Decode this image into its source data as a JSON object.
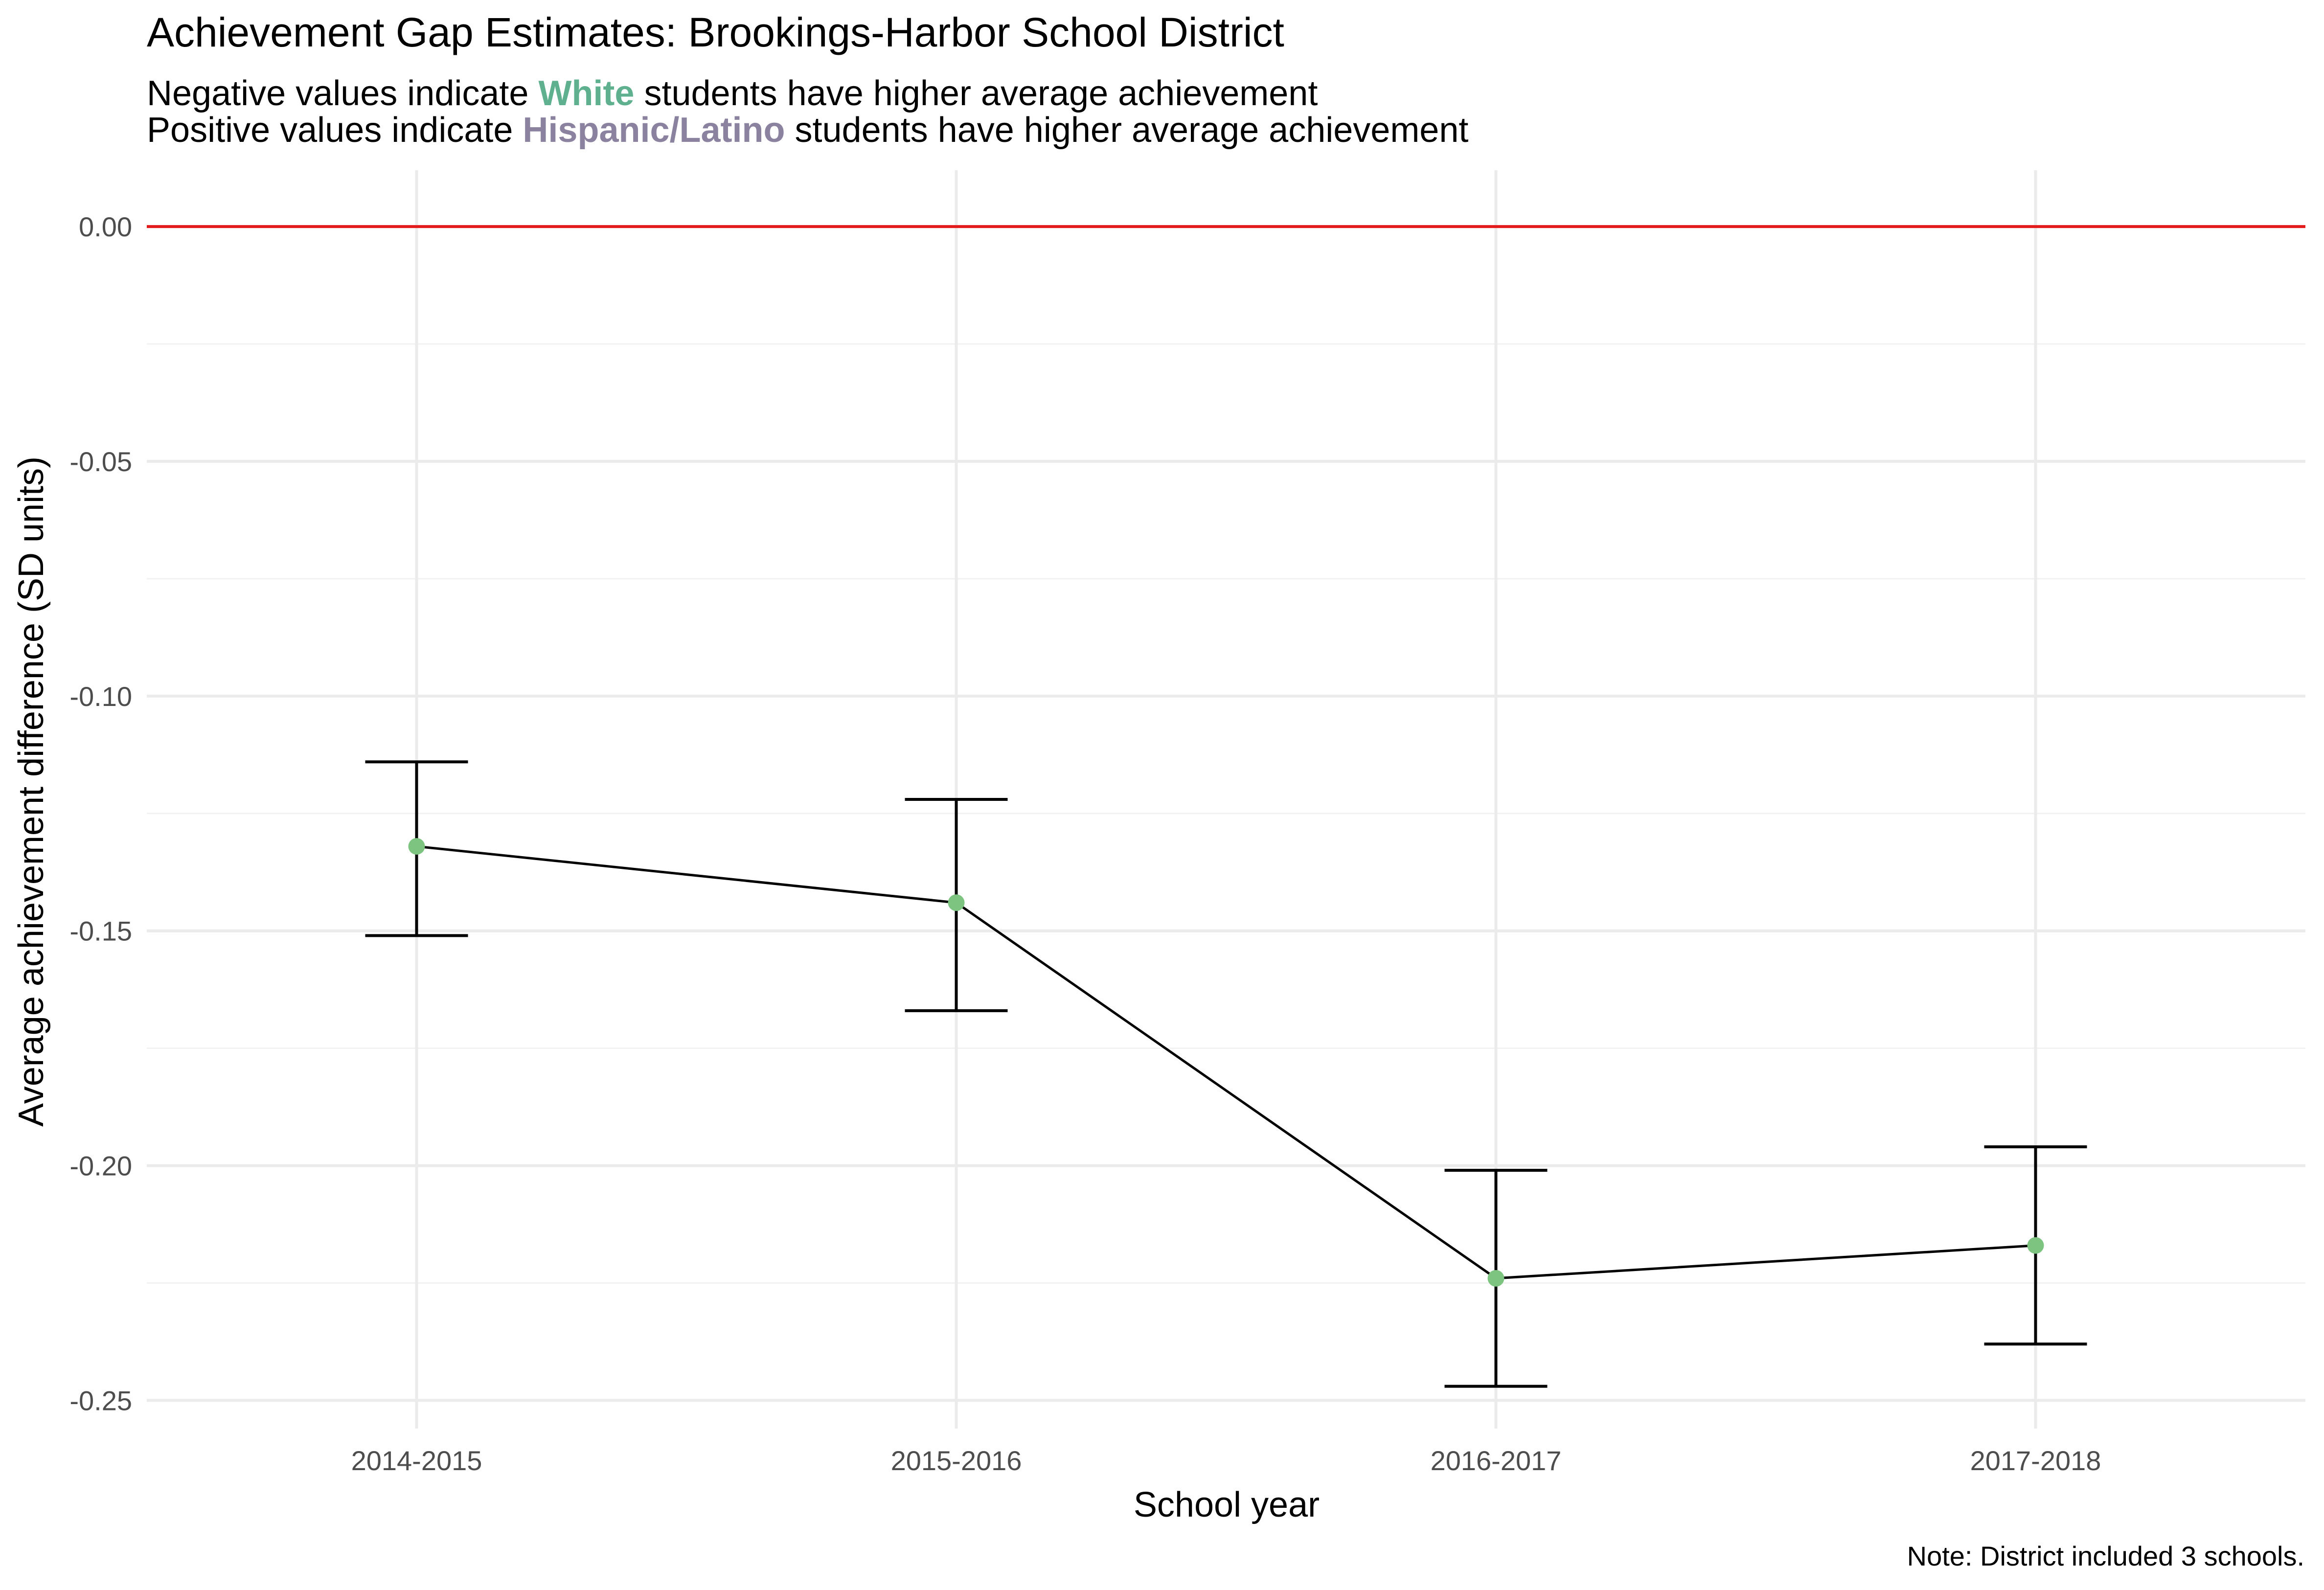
{
  "title": "Achievement Gap Estimates: Brookings-Harbor School District",
  "subtitle_line1": {
    "before": "Negative values indicate ",
    "highlight": "White",
    "after": " students have higher average achievement"
  },
  "subtitle_line2": {
    "before": "Positive values indicate ",
    "highlight": "Hispanic/Latino",
    "after": " students have higher average achievement"
  },
  "caption": "Note: District included 3 schools.",
  "colors": {
    "white_highlight": "#5fb08f",
    "hispanic_highlight": "#8b82a0",
    "point": "#7cc47f",
    "reference_line": "#e31a1c",
    "line": "#000000",
    "grid": "#ebebeb"
  },
  "chart_data": {
    "type": "line",
    "xlabel": "School year",
    "ylabel": "Average achievement difference (SD units)",
    "categories": [
      "2014-2015",
      "2015-2016",
      "2016-2017",
      "2017-2018"
    ],
    "values": [
      -0.132,
      -0.144,
      -0.224,
      -0.217
    ],
    "error_low": [
      -0.151,
      -0.167,
      -0.247,
      -0.238
    ],
    "error_high": [
      -0.114,
      -0.122,
      -0.201,
      -0.196
    ],
    "reference_line": 0.0,
    "ylim": [
      -0.256,
      0.012
    ],
    "yticks": [
      0.0,
      -0.05,
      -0.1,
      -0.15,
      -0.2,
      -0.25
    ],
    "ytick_labels": [
      "0.00",
      "-0.05",
      "-0.10",
      "-0.15",
      "-0.20",
      "-0.25"
    ],
    "grid": true,
    "legend": "none"
  }
}
